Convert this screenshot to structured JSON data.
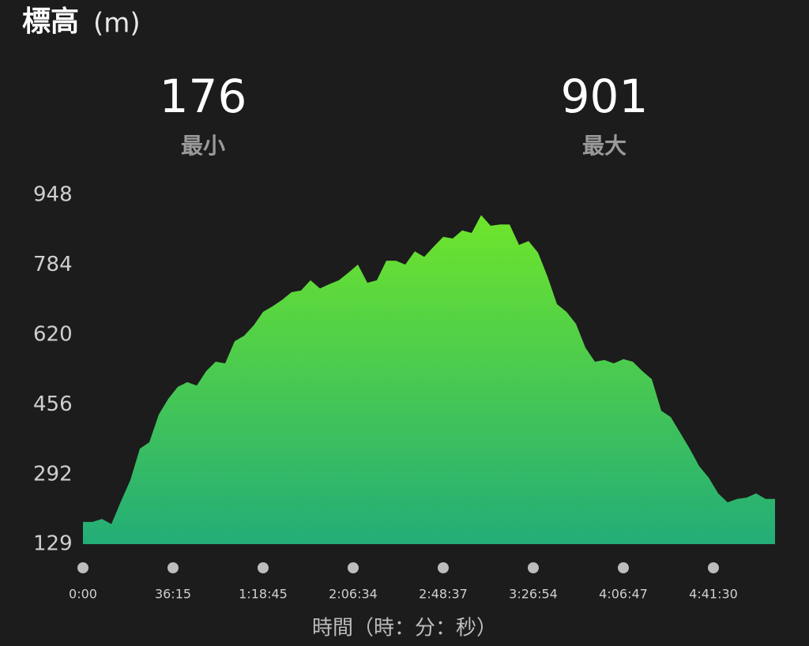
{
  "chart_data": {
    "type": "area",
    "title": "標高",
    "unit": "(m)",
    "stats": [
      {
        "value": 176,
        "label": "最小"
      },
      {
        "value": 901,
        "label": "最大"
      }
    ],
    "x_label": "時間（時：分：秒）",
    "values": [
      181,
      181,
      188,
      176,
      229,
      279,
      353,
      368,
      433,
      470,
      498,
      509,
      501,
      535,
      557,
      553,
      605,
      618,
      642,
      674,
      687,
      702,
      720,
      724,
      748,
      729,
      739,
      748,
      766,
      785,
      742,
      748,
      794,
      794,
      785,
      816,
      803,
      827,
      850,
      846,
      865,
      859,
      901,
      876,
      879,
      879,
      831,
      840,
      813,
      757,
      692,
      674,
      646,
      590,
      557,
      561,
      553,
      563,
      557,
      535,
      516,
      442,
      427,
      390,
      353,
      312,
      285,
      248,
      227,
      235,
      238,
      248,
      235,
      235
    ],
    "xlim": [
      0,
      73
    ],
    "xticks": [
      {
        "value": 0,
        "label": "0:00"
      },
      {
        "value": 9.5,
        "label": "36:15"
      },
      {
        "value": 19,
        "label": "1:18:45"
      },
      {
        "value": 28.5,
        "label": "2:06:34"
      },
      {
        "value": 38,
        "label": "2:48:37"
      },
      {
        "value": 47.5,
        "label": "3:26:54"
      },
      {
        "value": 57,
        "label": "4:06:47"
      },
      {
        "value": 66.5,
        "label": "4:41:30"
      }
    ],
    "ylim": [
      129,
      948
    ],
    "yticks": [
      129,
      292,
      456,
      620,
      784,
      948
    ],
    "gradient": [
      "#6ee52b",
      "#23ad78"
    ]
  }
}
